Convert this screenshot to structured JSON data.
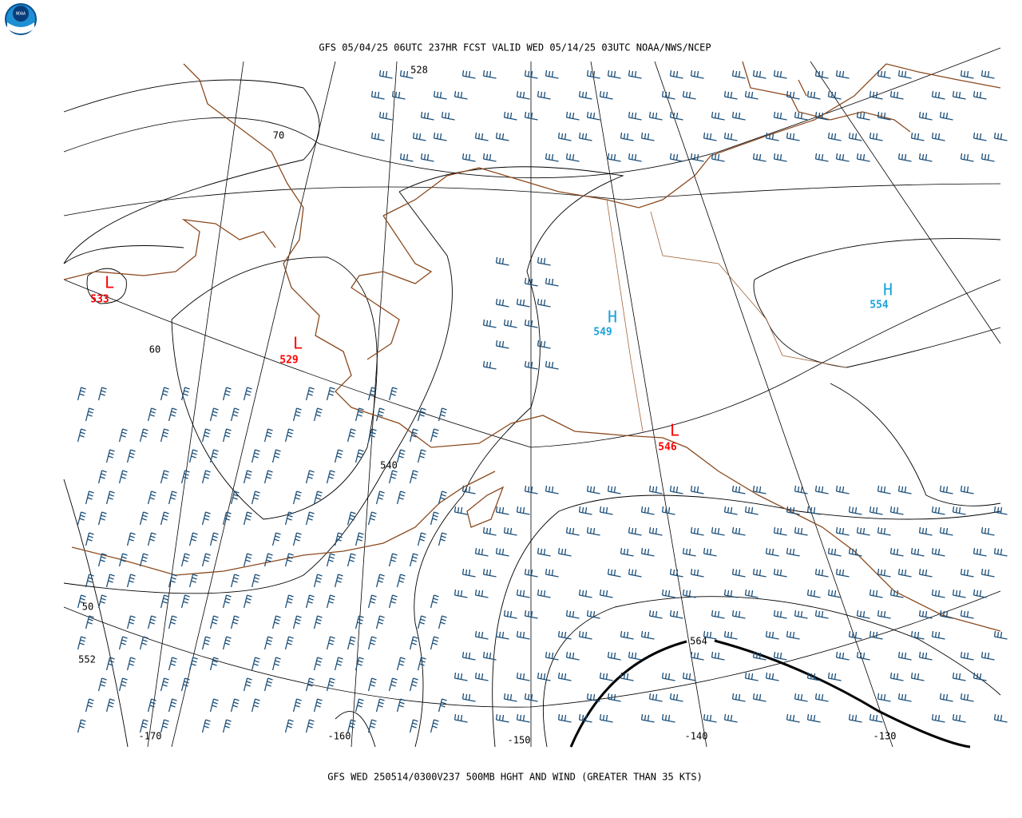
{
  "header": {
    "title": "GFS 05/04/25 06UTC 237HR FCST VALID WED 05/14/25 03UTC NOAA/NWS/NCEP"
  },
  "logo": {
    "label": "NOAA"
  },
  "map": {
    "latitudes": [
      70,
      60,
      50
    ],
    "longitudes": [
      -170,
      -160,
      -150,
      -140,
      -130
    ],
    "contour_labels": [
      528,
      540,
      552,
      564
    ],
    "centers": [
      {
        "label": "L",
        "value": 533,
        "color": "#ff0000"
      },
      {
        "label": "L",
        "value": 529,
        "color": "#ff0000"
      },
      {
        "label": "H",
        "value": 549,
        "color": "#1aa3dc"
      },
      {
        "label": "H",
        "value": 554,
        "color": "#1aa3dc"
      },
      {
        "label": "L",
        "value": 546,
        "color": "#ff0000"
      }
    ]
  },
  "footer": {
    "caption": "GFS WED 250514/0300V237 500MB HGHT AND WIND (GREATER THAN 35 KTS)"
  }
}
